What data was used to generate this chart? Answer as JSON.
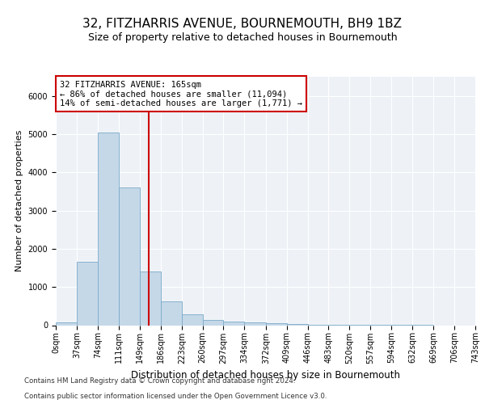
{
  "title": "32, FITZHARRIS AVENUE, BOURNEMOUTH, BH9 1BZ",
  "subtitle": "Size of property relative to detached houses in Bournemouth",
  "xlabel": "Distribution of detached houses by size in Bournemouth",
  "ylabel": "Number of detached properties",
  "footer1": "Contains HM Land Registry data © Crown copyright and database right 2024.",
  "footer2": "Contains public sector information licensed under the Open Government Licence v3.0.",
  "bin_edges": [
    0,
    37,
    74,
    111,
    149,
    186,
    223,
    260,
    297,
    334,
    372,
    409,
    446,
    483,
    520,
    557,
    594,
    632,
    669,
    706,
    743
  ],
  "bin_labels": [
    "0sqm",
    "37sqm",
    "74sqm",
    "111sqm",
    "149sqm",
    "186sqm",
    "223sqm",
    "260sqm",
    "297sqm",
    "334sqm",
    "372sqm",
    "409sqm",
    "446sqm",
    "483sqm",
    "520sqm",
    "557sqm",
    "594sqm",
    "632sqm",
    "669sqm",
    "706sqm",
    "743sqm"
  ],
  "bar_heights": [
    75,
    1650,
    5050,
    3600,
    1400,
    620,
    290,
    145,
    100,
    75,
    55,
    40,
    20,
    10,
    5,
    3,
    2,
    1,
    0,
    0
  ],
  "bar_color": "#c5d8e8",
  "bar_edge_color": "#7aaac8",
  "property_line_x": 165,
  "property_line_color": "#cc0000",
  "ylim": [
    0,
    6500
  ],
  "xlim": [
    0,
    743
  ],
  "annotation_text": "32 FITZHARRIS AVENUE: 165sqm\n← 86% of detached houses are smaller (11,094)\n14% of semi-detached houses are larger (1,771) →",
  "annotation_box_color": "#cc0000",
  "title_fontsize": 11,
  "subtitle_fontsize": 9,
  "ylabel_fontsize": 8,
  "xlabel_fontsize": 8.5,
  "tick_fontsize": 7,
  "annotation_fontsize": 7.5,
  "footer_fontsize": 6.2
}
